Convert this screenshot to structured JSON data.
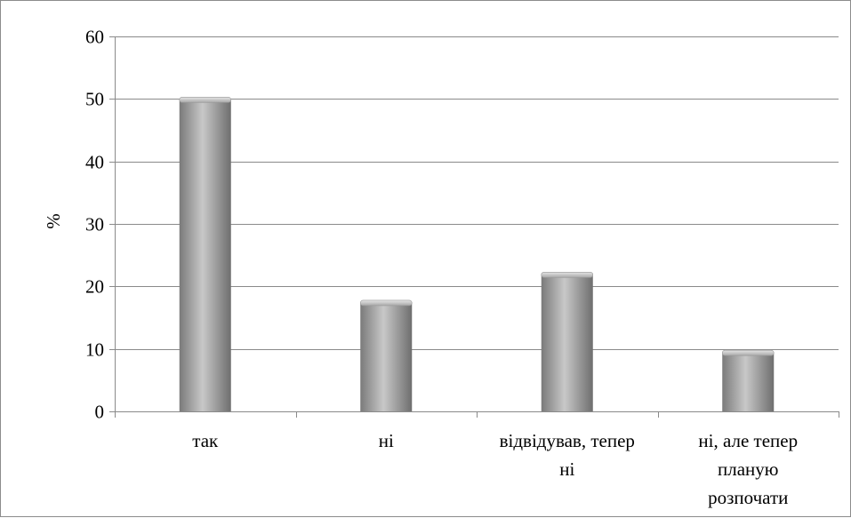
{
  "chart_data": {
    "type": "bar",
    "categories": [
      [
        "так"
      ],
      [
        "ні"
      ],
      [
        "відвідував, тепер",
        "ні"
      ],
      [
        "ні, але тепер",
        "планую",
        "розпочати"
      ]
    ],
    "values": [
      50,
      17.5,
      22,
      9.5
    ],
    "ylabel": "%",
    "yticks": [
      0,
      10,
      20,
      30,
      40,
      50,
      60
    ],
    "ylim": [
      0,
      60
    ],
    "grid": true,
    "bar_color": "#9a9a9a"
  }
}
